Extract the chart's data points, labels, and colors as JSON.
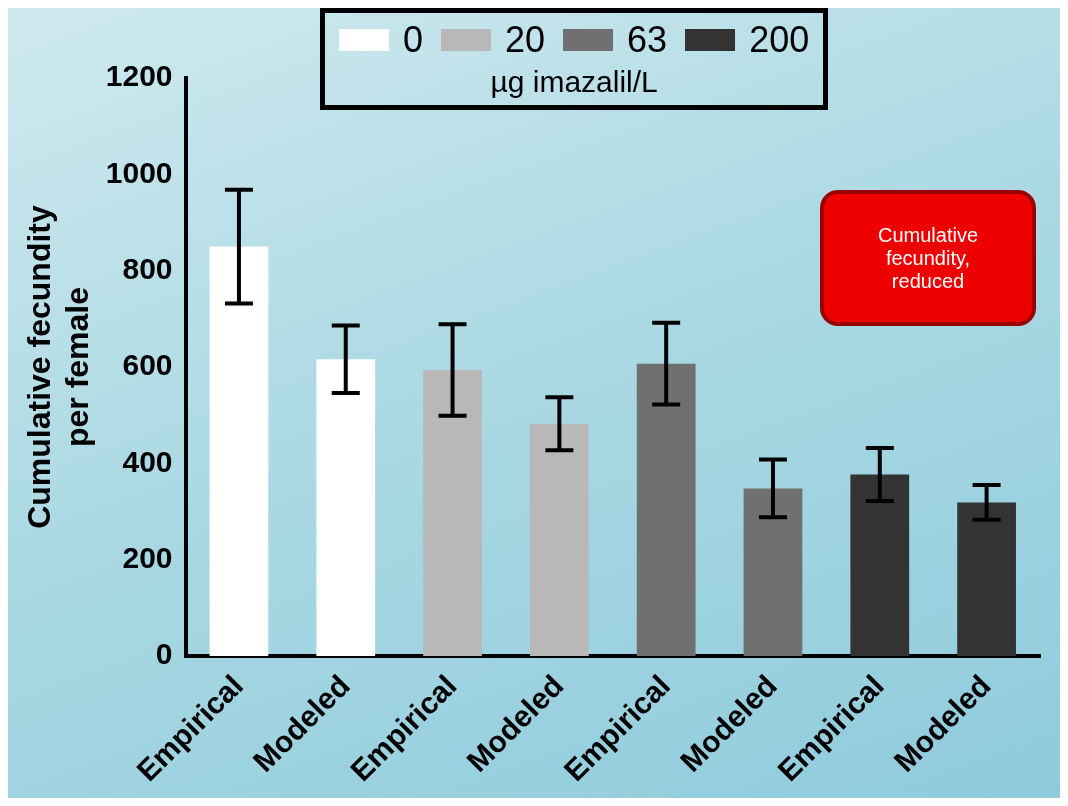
{
  "chart_data": {
    "type": "bar",
    "categories": [
      "Empirical",
      "Modeled",
      "Empirical",
      "Modeled",
      "Empirical",
      "Modeled",
      "Empirical",
      "Modeled"
    ],
    "series": [
      {
        "name": "0",
        "color": "#ffffff",
        "values": [
          850,
          616,
          null,
          null,
          null,
          null,
          null,
          null
        ],
        "errors": [
          118,
          70,
          null,
          null,
          null,
          null,
          null,
          null
        ]
      },
      {
        "name": "20",
        "color": "#b8b8b8",
        "values": [
          null,
          null,
          594,
          482,
          null,
          null,
          null,
          null
        ],
        "errors": [
          null,
          null,
          95,
          55,
          null,
          null,
          null,
          null
        ]
      },
      {
        "name": "63",
        "color": "#707070",
        "values": [
          null,
          null,
          null,
          null,
          607,
          348,
          null,
          null
        ],
        "errors": [
          null,
          null,
          null,
          null,
          85,
          60,
          null,
          null
        ]
      },
      {
        "name": "200",
        "color": "#333333",
        "values": [
          null,
          null,
          null,
          null,
          null,
          null,
          377,
          319
        ],
        "errors": [
          null,
          null,
          null,
          null,
          null,
          null,
          55,
          36
        ]
      }
    ],
    "ylabel": "Cumulative fecundity\nper female",
    "legend_title": "µg imazalil/L",
    "legend": "top",
    "ylim": [
      0,
      1200
    ],
    "yticks": [
      0,
      200,
      400,
      600,
      800,
      1000,
      1200
    ],
    "grid": false,
    "annotations": [
      "Cumulative fecundity, reduced"
    ]
  }
}
